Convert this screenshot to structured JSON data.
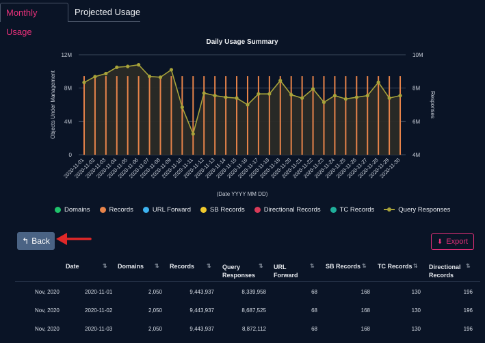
{
  "tabs": [
    {
      "label": "Monthly Usage",
      "active": true
    },
    {
      "label": "Projected Usage",
      "active": false
    }
  ],
  "chart_data": {
    "type": "bar",
    "title": "Daily Usage Summary",
    "xlabel": "(Date YYYY MM DD)",
    "ylabel_left": "Objects Under Management",
    "ylabel_right": "Responses",
    "ylim_left": [
      0,
      12000000
    ],
    "ylim_right": [
      4000000,
      10000000
    ],
    "yticks_left": [
      "0",
      "4M",
      "8M",
      "12M"
    ],
    "yticks_right": [
      "4M",
      "6M",
      "8M",
      "10M"
    ],
    "grid": true,
    "legend_position": "bottom",
    "categories": [
      "2020-11-01",
      "2020-11-02",
      "2020-11-03",
      "2020-11-04",
      "2020-11-05",
      "2020-11-06",
      "2020-11-07",
      "2020-11-08",
      "2020-11-09",
      "2020-11-10",
      "2020-11-11",
      "2020-11-12",
      "2020-11-13",
      "2020-11-14",
      "2020-11-15",
      "2020-11-16",
      "2020-11-17",
      "2020-11-18",
      "2020-11-19",
      "2020-11-20",
      "2020-11-21",
      "2020-11-22",
      "2020-11-23",
      "2020-11-24",
      "2020-11-25",
      "2020-11-26",
      "2020-11-27",
      "2020-11-28",
      "2020-11-29",
      "2020-11-30"
    ],
    "series": [
      {
        "name": "Records",
        "axis": "left",
        "type": "bar",
        "color": "#e8844a",
        "values": [
          9443937,
          9443937,
          9443937,
          9443937,
          9443937,
          9443937,
          9443937,
          9443937,
          9443937,
          9443937,
          9443937,
          9443937,
          9443937,
          9443937,
          9443937,
          9443937,
          9443937,
          9443937,
          9443937,
          9443937,
          9443937,
          9443937,
          9443937,
          9443937,
          9443937,
          9443937,
          9443937,
          9443937,
          9443937,
          9443937
        ]
      },
      {
        "name": "Query Responses",
        "axis": "right",
        "type": "area-line",
        "color": "#a8a33a",
        "values": [
          8339958,
          8687525,
          8872112,
          9250000,
          9300000,
          9400000,
          8700000,
          8650000,
          9100000,
          6850000,
          5250000,
          7700000,
          7550000,
          7450000,
          7400000,
          7000000,
          7650000,
          7650000,
          8450000,
          7600000,
          7400000,
          7950000,
          7150000,
          7550000,
          7350000,
          7450000,
          7550000,
          8350000,
          7400000,
          7550000
        ]
      }
    ]
  },
  "legend": [
    {
      "label": "Domains",
      "color": "#1fc36b",
      "kind": "dot"
    },
    {
      "label": "Records",
      "color": "#e8844a",
      "kind": "dot"
    },
    {
      "label": "URL Forward",
      "color": "#3db3f0",
      "kind": "dot"
    },
    {
      "label": "SB Records",
      "color": "#f0c92d",
      "kind": "dot"
    },
    {
      "label": "Directional Records",
      "color": "#d83a58",
      "kind": "dot"
    },
    {
      "label": "TC Records",
      "color": "#1fae9a",
      "kind": "dot"
    },
    {
      "label": "Query Responses",
      "color": "#a8a33a",
      "kind": "line"
    }
  ],
  "buttons": {
    "back": "Back",
    "export": "Export"
  },
  "table": {
    "headers": [
      {
        "label": "Date"
      },
      {
        "label": "Domains"
      },
      {
        "label": "Records"
      },
      {
        "label": "Query Responses"
      },
      {
        "label": "URL Forward"
      },
      {
        "label": "SB Records"
      },
      {
        "label": "TC Records"
      },
      {
        "label": "Directional Records"
      }
    ],
    "sort_glyph": "⇅",
    "rows": [
      {
        "month": "Nov, 2020",
        "date": "2020-11-01",
        "domains": "2,050",
        "records": "9,443,937",
        "query": "8,339,958",
        "url": "68",
        "sb": "168",
        "tc": "130",
        "dir": "196"
      },
      {
        "month": "Nov, 2020",
        "date": "2020-11-02",
        "domains": "2,050",
        "records": "9,443,937",
        "query": "8,687,525",
        "url": "68",
        "sb": "168",
        "tc": "130",
        "dir": "196"
      },
      {
        "month": "Nov, 2020",
        "date": "2020-11-03",
        "domains": "2,050",
        "records": "9,443,937",
        "query": "8,872,112",
        "url": "68",
        "sb": "168",
        "tc": "130",
        "dir": "196"
      }
    ]
  }
}
